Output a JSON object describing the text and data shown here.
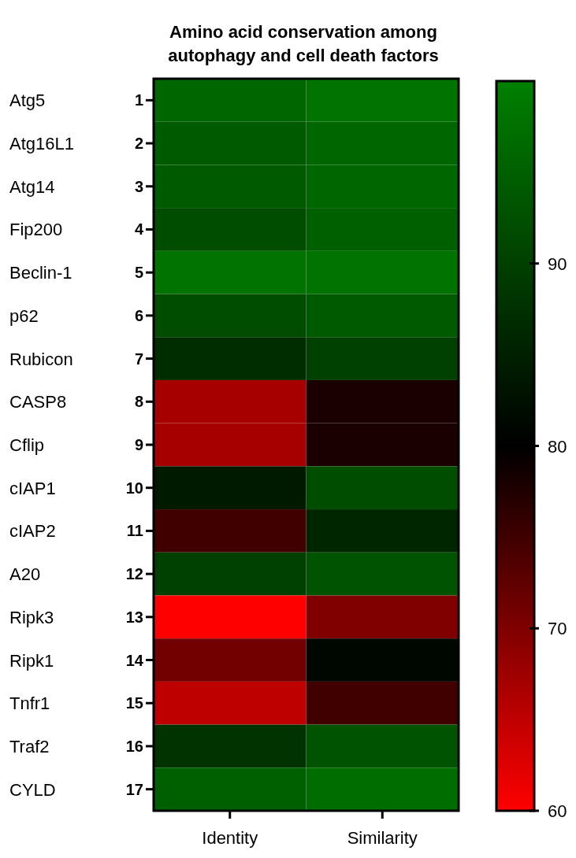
{
  "chart_data": {
    "type": "heatmap",
    "title": "Amino acid conservation among\nautophagy and cell death factors",
    "categories": [
      "Identity",
      "Similarity"
    ],
    "y_categories": [
      "1",
      "2",
      "3",
      "4",
      "5",
      "6",
      "7",
      "8",
      "9",
      "10",
      "11",
      "12",
      "13",
      "14",
      "15",
      "16",
      "17"
    ],
    "y2_categories": [
      "Atg5",
      "Atg16L1",
      "Atg14",
      "Fip200",
      "Beclin-1",
      "p62",
      "Rubicon",
      "CASP8",
      "Cflip",
      "cIAP1",
      "cIAP2",
      "A20",
      "Ripk3",
      "Ripk1",
      "Tnfr1",
      "Traf2",
      "CYLD"
    ],
    "cells": [
      [
        96,
        98
      ],
      [
        94,
        96
      ],
      [
        94,
        96
      ],
      [
        92,
        95
      ],
      [
        98,
        98
      ],
      [
        92,
        94
      ],
      [
        87,
        90
      ],
      [
        67,
        78
      ],
      [
        67,
        78
      ],
      [
        84,
        92
      ],
      [
        75,
        86
      ],
      [
        90,
        93
      ],
      [
        60,
        70
      ],
      [
        71,
        81
      ],
      [
        65,
        75
      ],
      [
        88,
        93
      ],
      [
        95,
        97
      ]
    ],
    "colors": [
      "#ff0000",
      "#000000",
      "#008000"
    ],
    "clim": [
      60,
      100
    ],
    "cticks": [
      60,
      70,
      80,
      90
    ]
  }
}
